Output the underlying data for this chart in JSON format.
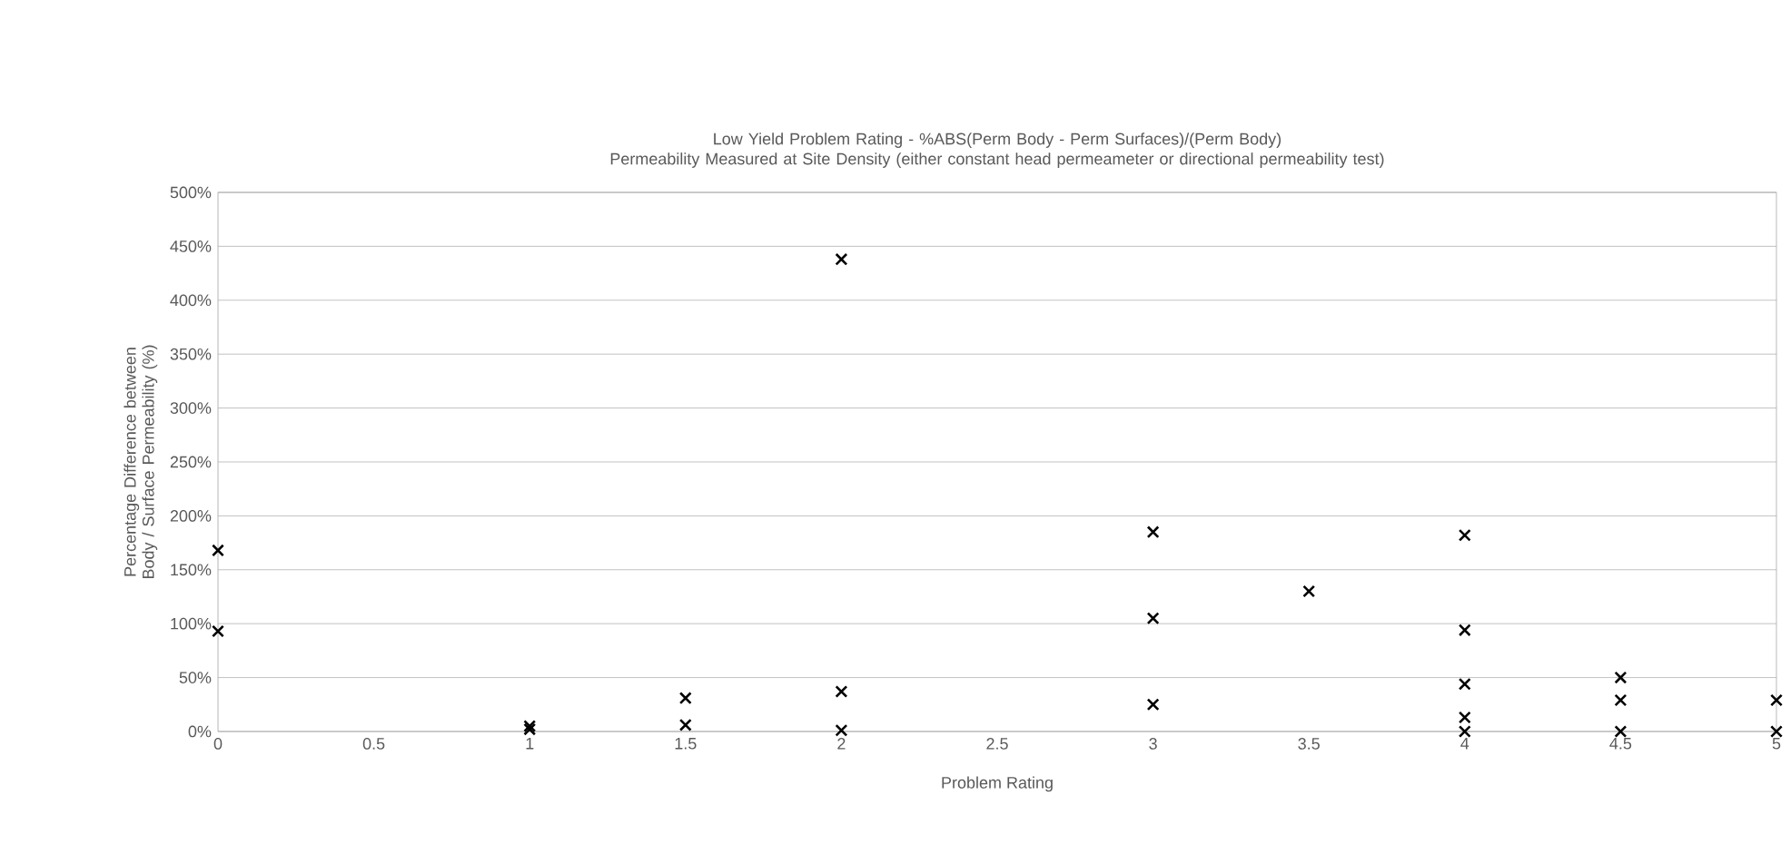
{
  "chart_data": {
    "type": "scatter",
    "title": "Low Yield Problem Rating - %ABS(Perm Body - Perm Surfaces)/(Perm Body)",
    "subtitle": "Permeability Measured at Site Density (either constant head permeameter or directional permeability test)",
    "xlabel": "Problem Rating",
    "ylabel": "Percentage Difference between Body / Surface Permeability (%)",
    "x": [
      0,
      0,
      1,
      1,
      1.5,
      1.5,
      2,
      2,
      2,
      3,
      3,
      3,
      3.5,
      4,
      4,
      4,
      4,
      4,
      4.5,
      4.5,
      4.5,
      5,
      5
    ],
    "values": [
      168,
      93,
      5,
      2,
      31,
      6,
      438,
      37,
      1,
      185,
      105,
      25,
      130,
      182,
      94,
      44,
      13,
      0,
      50,
      29,
      0,
      29,
      0
    ],
    "color": "#000000",
    "marker": "cross",
    "grid": "y",
    "xlim": [
      0,
      5
    ],
    "xticks": [
      0,
      0.5,
      1,
      1.5,
      2,
      2.5,
      3,
      3.5,
      4,
      4.5,
      5
    ],
    "ylim": [
      0,
      500
    ],
    "yticks": [
      {
        "value": 0,
        "label": "0%"
      },
      {
        "value": 50,
        "label": "50%"
      },
      {
        "value": 100,
        "label": "100%"
      },
      {
        "value": 150,
        "label": "150%"
      },
      {
        "value": 200,
        "label": "200%"
      },
      {
        "value": 250,
        "label": "250%"
      },
      {
        "value": 300,
        "label": "300%"
      },
      {
        "value": 350,
        "label": "350%"
      },
      {
        "value": 400,
        "label": "400%"
      },
      {
        "value": 450,
        "label": "450%"
      },
      {
        "value": 500,
        "label": "500%"
      }
    ]
  }
}
